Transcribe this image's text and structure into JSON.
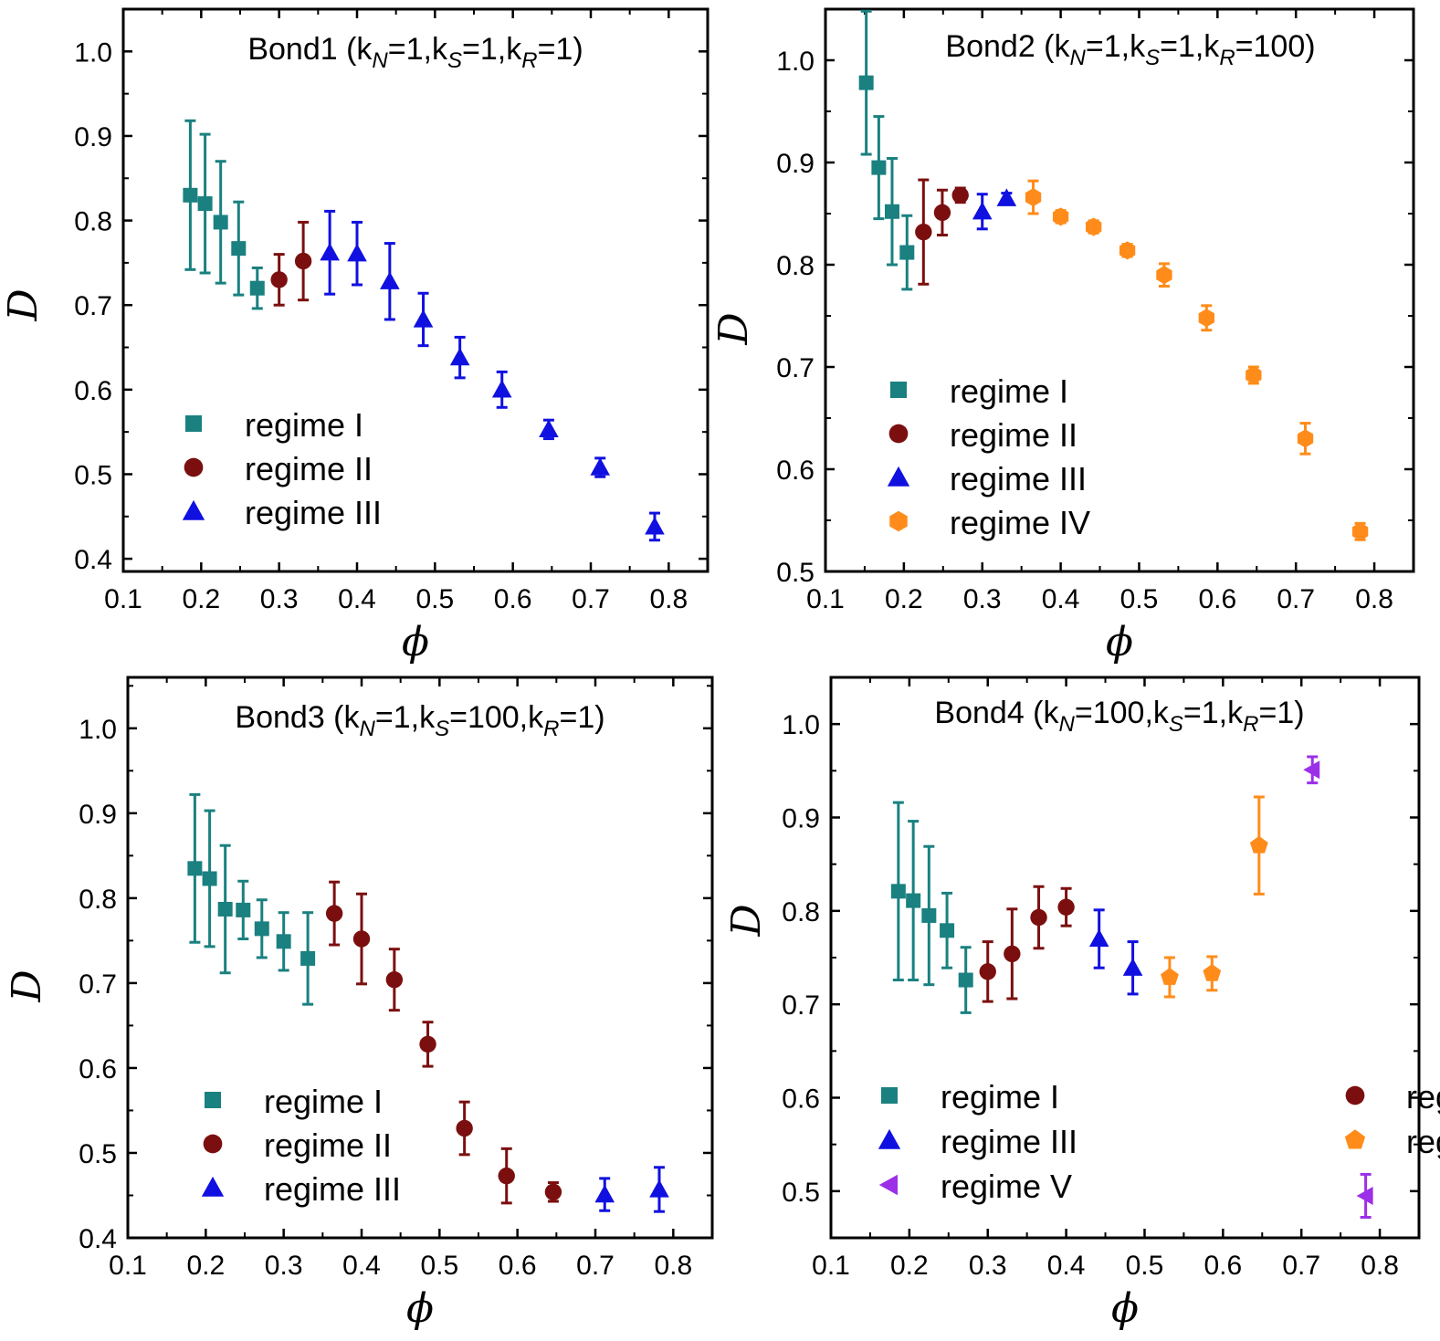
{
  "chart_data": [
    {
      "type": "scatter",
      "title": {
        "prefix": "Bond1 (k",
        "s1": "N",
        "m1": "=1,k",
        "s2": "S",
        "m2": "=1,k",
        "s3": "R",
        "suffix": "=1)"
      },
      "xlabel": "ϕ",
      "ylabel": "D",
      "xlim": [
        0.1,
        0.85
      ],
      "ylim": [
        0.385,
        1.05
      ],
      "xticks": [
        "0.1",
        "0.2",
        "0.3",
        "0.4",
        "0.5",
        "0.6",
        "0.7",
        "0.8"
      ],
      "yticks": [
        "0.4",
        "0.5",
        "0.6",
        "0.7",
        "0.8",
        "0.9",
        "1.0"
      ],
      "legend_columns": 1,
      "series": [
        {
          "name": "regime I",
          "marker": "square",
          "color": "#1a8080",
          "points": [
            [
              0.186,
              0.83,
              0.088
            ],
            [
              0.205,
              0.82,
              0.082
            ],
            [
              0.225,
              0.798,
              0.072
            ],
            [
              0.248,
              0.767,
              0.055
            ],
            [
              0.272,
              0.72,
              0.024
            ]
          ]
        },
        {
          "name": "regime II",
          "marker": "circle",
          "color": "#7b0f0f",
          "points": [
            [
              0.3,
              0.73,
              0.03
            ],
            [
              0.331,
              0.752,
              0.046
            ]
          ]
        },
        {
          "name": "regime III",
          "marker": "triangle-up",
          "color": "#1010e0",
          "points": [
            [
              0.365,
              0.762,
              0.049
            ],
            [
              0.4,
              0.761,
              0.037
            ],
            [
              0.442,
              0.728,
              0.045
            ],
            [
              0.485,
              0.683,
              0.031
            ],
            [
              0.532,
              0.638,
              0.024
            ],
            [
              0.586,
              0.6,
              0.021
            ],
            [
              0.646,
              0.553,
              0.011
            ],
            [
              0.712,
              0.508,
              0.011
            ],
            [
              0.782,
              0.438,
              0.016
            ]
          ]
        }
      ]
    },
    {
      "type": "scatter",
      "title": {
        "prefix": "Bond2 (k",
        "s1": "N",
        "m1": "=1,k",
        "s2": "S",
        "m2": "=1,k",
        "s3": "R",
        "suffix": "=100)"
      },
      "xlabel": "ϕ",
      "ylabel": "D",
      "xlim": [
        0.1,
        0.85
      ],
      "ylim": [
        0.5,
        1.05
      ],
      "xticks": [
        "0.1",
        "0.2",
        "0.3",
        "0.4",
        "0.5",
        "0.6",
        "0.7",
        "0.8"
      ],
      "yticks": [
        "0.5",
        "0.6",
        "0.7",
        "0.8",
        "0.9",
        "1.0"
      ],
      "legend_columns": 1,
      "series": [
        {
          "name": "regime I",
          "marker": "square",
          "color": "#1a8080",
          "points": [
            [
              0.152,
              0.978,
              0.07
            ],
            [
              0.168,
              0.895,
              0.05
            ],
            [
              0.185,
              0.852,
              0.052
            ],
            [
              0.204,
              0.812,
              0.036
            ]
          ]
        },
        {
          "name": "regime II",
          "marker": "circle",
          "color": "#7b0f0f",
          "points": [
            [
              0.225,
              0.832,
              0.051
            ],
            [
              0.249,
              0.851,
              0.022
            ],
            [
              0.272,
              0.868,
              0.007
            ]
          ]
        },
        {
          "name": "regime III",
          "marker": "triangle-up",
          "color": "#1010e0",
          "points": [
            [
              0.3,
              0.852,
              0.017
            ],
            [
              0.331,
              0.865,
              0.005
            ]
          ]
        },
        {
          "name": "regime IV",
          "marker": "hexagon",
          "color": "#ff8c1a",
          "points": [
            [
              0.365,
              0.866,
              0.016
            ],
            [
              0.4,
              0.847,
              0.006
            ],
            [
              0.442,
              0.837,
              0.006
            ],
            [
              0.485,
              0.814,
              0.006
            ],
            [
              0.532,
              0.79,
              0.011
            ],
            [
              0.586,
              0.748,
              0.012
            ],
            [
              0.646,
              0.692,
              0.008
            ],
            [
              0.712,
              0.63,
              0.015
            ],
            [
              0.782,
              0.539,
              0.008
            ]
          ]
        }
      ]
    },
    {
      "type": "scatter",
      "title": {
        "prefix": "Bond3 (k",
        "s1": "N",
        "m1": "=1,k",
        "s2": "S",
        "m2": "=100,k",
        "s3": "R",
        "suffix": "=1)"
      },
      "xlabel": "ϕ",
      "ylabel": "D",
      "xlim": [
        0.1,
        0.85
      ],
      "ylim": [
        0.4,
        1.06
      ],
      "xticks": [
        "0.1",
        "0.2",
        "0.3",
        "0.4",
        "0.5",
        "0.6",
        "0.7",
        "0.8"
      ],
      "yticks": [
        "0.4",
        "0.5",
        "0.6",
        "0.7",
        "0.8",
        "0.9",
        "1.0"
      ],
      "legend_columns": 1,
      "series": [
        {
          "name": "regime I",
          "marker": "square",
          "color": "#1a8080",
          "points": [
            [
              0.186,
              0.835,
              0.087
            ],
            [
              0.205,
              0.823,
              0.08
            ],
            [
              0.225,
              0.787,
              0.075
            ],
            [
              0.248,
              0.786,
              0.034
            ],
            [
              0.272,
              0.764,
              0.034
            ],
            [
              0.3,
              0.749,
              0.034
            ],
            [
              0.331,
              0.729,
              0.054
            ]
          ]
        },
        {
          "name": "regime II",
          "marker": "circle",
          "color": "#7b0f0f",
          "points": [
            [
              0.365,
              0.782,
              0.037
            ],
            [
              0.4,
              0.752,
              0.053
            ],
            [
              0.442,
              0.704,
              0.036
            ],
            [
              0.485,
              0.628,
              0.026
            ],
            [
              0.532,
              0.529,
              0.031
            ],
            [
              0.586,
              0.473,
              0.032
            ],
            [
              0.646,
              0.454,
              0.011
            ]
          ]
        },
        {
          "name": "regime III",
          "marker": "triangle-up",
          "color": "#1010e0",
          "points": [
            [
              0.712,
              0.451,
              0.019
            ],
            [
              0.782,
              0.457,
              0.026
            ]
          ]
        }
      ]
    },
    {
      "type": "scatter",
      "title": {
        "prefix": "Bond4 (k",
        "s1": "N",
        "m1": "=100,k",
        "s2": "S",
        "m2": "=1,k",
        "s3": "R",
        "suffix": "=1)"
      },
      "xlabel": "ϕ",
      "ylabel": "D",
      "xlim": [
        0.1,
        0.85
      ],
      "ylim": [
        0.45,
        1.05
      ],
      "xticks": [
        "0.1",
        "0.2",
        "0.3",
        "0.4",
        "0.5",
        "0.6",
        "0.7",
        "0.8"
      ],
      "yticks": [
        "0.5",
        "0.6",
        "0.7",
        "0.8",
        "0.9",
        "1.0"
      ],
      "legend_columns": 2,
      "series": [
        {
          "name": "regime I",
          "marker": "square",
          "color": "#1a8080",
          "points": [
            [
              0.186,
              0.821,
              0.095
            ],
            [
              0.205,
              0.811,
              0.085
            ],
            [
              0.225,
              0.795,
              0.074
            ],
            [
              0.248,
              0.779,
              0.04
            ],
            [
              0.272,
              0.726,
              0.035
            ]
          ]
        },
        {
          "name": "regime II",
          "marker": "circle",
          "color": "#7b0f0f",
          "points": [
            [
              0.3,
              0.735,
              0.032
            ],
            [
              0.331,
              0.754,
              0.048
            ],
            [
              0.365,
              0.793,
              0.033
            ],
            [
              0.4,
              0.804,
              0.02
            ]
          ]
        },
        {
          "name": "regime III",
          "marker": "triangle-up",
          "color": "#1010e0",
          "points": [
            [
              0.442,
              0.77,
              0.031
            ],
            [
              0.485,
              0.739,
              0.028
            ]
          ]
        },
        {
          "name": "regime IV",
          "marker": "pentagon",
          "color": "#ff8c1a",
          "points": [
            [
              0.532,
              0.729,
              0.021
            ],
            [
              0.586,
              0.733,
              0.018
            ],
            [
              0.646,
              0.87,
              0.052
            ]
          ]
        },
        {
          "name": "regime V",
          "marker": "triangle-left",
          "color": "#9b30e8",
          "points": [
            [
              0.714,
              0.951,
              0.014
            ],
            [
              0.782,
              0.495,
              0.023
            ]
          ]
        }
      ]
    }
  ]
}
